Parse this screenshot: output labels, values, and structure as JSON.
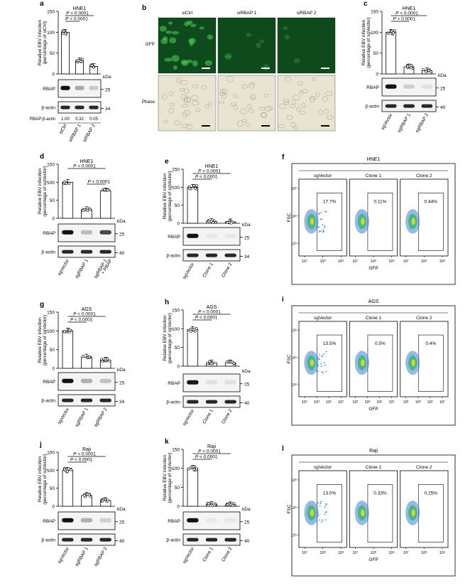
{
  "panels": {
    "a": {
      "letter": "a",
      "title": "HNE1",
      "ylabel1": "Relative EBV infection",
      "ylabel2": "(percentage of siCtrl)",
      "yticks": [
        "0",
        "50",
        "100",
        "150"
      ],
      "p_values": [
        "P < 0.0001",
        "P < 0.0001"
      ],
      "groups": [
        "siCtrl",
        "siRBAP 1",
        "siRBAP 2"
      ],
      "means": [
        100,
        32,
        18
      ],
      "blot1": "RBAP",
      "blot2": "β-actin",
      "kda": "kDa",
      "mw": [
        "25",
        "34"
      ],
      "ratio_label": "RBAP:β-actin",
      "ratios": [
        "1.00",
        "0.32",
        "0.05"
      ]
    },
    "b": {
      "letter": "b",
      "conditions": [
        "siCtrl",
        "siRBAP 1",
        "siRBAP 2"
      ],
      "rows": [
        "GFP",
        "Phase"
      ]
    },
    "c": {
      "letter": "c",
      "title": "HNE1",
      "ylabel1": "Relative EBV infection",
      "ylabel2": "(percentage of sgVector)",
      "yticks": [
        "0",
        "50",
        "100",
        "150"
      ],
      "p_values": [
        "P < 0.0001",
        "P < 0.0001"
      ],
      "groups": [
        "sgVector",
        "sgRBAP 1",
        "sgRBAP 2"
      ],
      "means": [
        100,
        17,
        8
      ],
      "blot1": "RBAP",
      "blot2": "β-actin",
      "kda": "kDa",
      "mw": [
        "25",
        "40"
      ]
    },
    "d": {
      "letter": "d",
      "title": "HNE1",
      "ylabel1": "Relative EBV infection",
      "ylabel2": "(percentage of sgVector)",
      "yticks": [
        "0",
        "50",
        "100",
        "150"
      ],
      "p_values": [
        "P < 0.0001",
        "P < 0.0001"
      ],
      "groups": [
        "sgVector",
        "sgRBAP 1",
        "sgRBAP 1",
        "+ RBAP"
      ],
      "means": [
        100,
        24,
        76
      ],
      "blot1": "RBAP",
      "blot2": "β-actin",
      "kda": "kDa",
      "mw": [
        "25",
        "40"
      ]
    },
    "e": {
      "letter": "e",
      "title": "HNE1",
      "ylabel1": "Relative EBV infection",
      "ylabel2": "(percentage of sgVector)",
      "yticks": [
        "0",
        "50",
        "100",
        "150"
      ],
      "p_values": [
        "P < 0.0001",
        "P < 0.0001"
      ],
      "groups": [
        "sgVector",
        "Clone 1",
        "Clone 2"
      ],
      "means": [
        100,
        5,
        4
      ],
      "blot1": "RBAP",
      "blot2": "β-actin",
      "kda": "kDa",
      "mw": [
        "25",
        "34"
      ]
    },
    "f": {
      "letter": "f",
      "title": "HNE1",
      "samples": [
        "sgVector",
        "Clone 1",
        "Clone 2"
      ],
      "percents": [
        "17.7%",
        "0.11%",
        "0.44%"
      ],
      "ylabel": "FSC",
      "xlabel": "GFP",
      "yticks": [
        "10⁷",
        "10⁶",
        "10⁵"
      ],
      "xticks": [
        "10⁷",
        "10⁸",
        "10⁹"
      ]
    },
    "g": {
      "letter": "g",
      "title": "AGS",
      "ylabel1": "Relative EBV infection",
      "ylabel2": "(percentage of sgVector)",
      "yticks": [
        "0",
        "50",
        "100",
        "150"
      ],
      "p_values": [
        "P < 0.0001",
        "P < 0.0001"
      ],
      "groups": [
        "sgVector",
        "sgRBAP 1",
        "sgRBAP 2"
      ],
      "means": [
        100,
        30,
        22
      ],
      "blot1": "RBAP",
      "blot2": "β-actin",
      "kda": "kDa",
      "mw": [
        "25",
        "34"
      ]
    },
    "h": {
      "letter": "h",
      "title": "AGS",
      "ylabel1": "Relative EBV infection",
      "ylabel2": "(percentage of sgVector)",
      "yticks": [
        "0",
        "50",
        "100",
        "150"
      ],
      "p_values": [
        "P < 0.0001",
        "P < 0.0001"
      ],
      "groups": [
        "sgVector",
        "Clone 1",
        "Clone 2"
      ],
      "means": [
        98,
        9,
        9
      ],
      "blot1": "RBAP",
      "blot2": "β-actin",
      "kda": "kDa",
      "mw": [
        "25",
        "40"
      ]
    },
    "i": {
      "letter": "i",
      "title": "AGS",
      "samples": [
        "sgVector",
        "Clone 1",
        "Clone 2"
      ],
      "percents": [
        "13.5%",
        "0.5%",
        "0.4%"
      ],
      "ylabel": "FSC",
      "xlabel": "GFP",
      "yticks": [
        "10⁶",
        "10⁵",
        "10⁴"
      ],
      "xticks": [
        "10¹",
        "10³",
        "10⁵",
        "10⁷"
      ]
    },
    "j": {
      "letter": "j",
      "title": "Raji",
      "ylabel1": "Relative EBV infection",
      "ylabel2": "(percentage of sgVector)",
      "yticks": [
        "0",
        "50",
        "100",
        "150"
      ],
      "p_values": [
        "P < 0.0001",
        "P < 0.0001"
      ],
      "groups": [
        "sgVector",
        "sgRBAP 1",
        "sgRBAP 2"
      ],
      "means": [
        100,
        30,
        16
      ],
      "blot1": "RBAP",
      "blot2": "β-actin",
      "kda": "kDa",
      "mw": [
        "25",
        "40"
      ]
    },
    "k": {
      "letter": "k",
      "title": "Raji",
      "ylabel1": "Relative EBV infection",
      "ylabel2": "(percentage of sgVector)",
      "yticks": [
        "0",
        "50",
        "100",
        "150"
      ],
      "p_values": [
        "P < 0.0001",
        "P < 0.0001"
      ],
      "groups": [
        "sgVector",
        "Clone 1",
        "Clone 2"
      ],
      "means": [
        100,
        5,
        4
      ],
      "blot1": "RBAP",
      "blot2": "β-actin",
      "kda": "kDa",
      "mw": [
        "25",
        "40"
      ]
    },
    "l": {
      "letter": "l",
      "title": "Raji",
      "samples": [
        "sgVector",
        "Clone 1",
        "Clone 2"
      ],
      "percents": [
        "13.0%",
        "0.33%",
        "0.25%"
      ],
      "ylabel": "FSC",
      "xlabel": "GFP",
      "yticks": [
        "10⁶",
        "10⁵",
        "10⁴"
      ],
      "xticks": [
        "10⁷",
        "10⁸",
        "10⁹"
      ]
    }
  }
}
